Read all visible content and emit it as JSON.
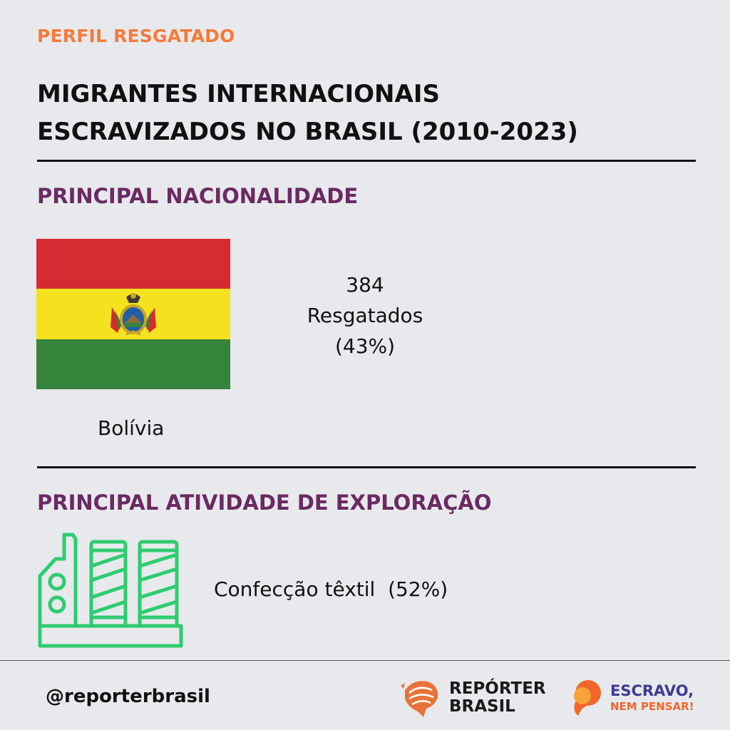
{
  "header": {
    "kicker": "PERFIL RESGATADO",
    "title_line1": "MIGRANTES INTERNACIONAIS",
    "title_line2": "ESCRAVIZADOS NO BRASIL (2010-2023)"
  },
  "nationality": {
    "heading": "PRINCIPAL NACIONALIDADE",
    "flag_icon": "bolivia-flag",
    "flag_colors": [
      "#d52b32",
      "#f4e21e",
      "#36843c"
    ],
    "count": "384",
    "count_label": "Resgatados",
    "percent": "(43%)",
    "country": "Bolívia"
  },
  "activity": {
    "heading": "PRINCIPAL ATIVIDADE DE EXPLORAÇÃO",
    "icon": "textile-machine-icon",
    "icon_color": "#2ecc71",
    "label": "Confecção têxtil  (52%)"
  },
  "footer": {
    "handle": "@reporterbrasil",
    "brand1_line1": "REPÓRTER",
    "brand1_line2": "BRASIL",
    "brand2_line1": "ESCRAVO,",
    "brand2_line2": "NEM PENSAR!",
    "accent_orange": "#f0662c",
    "accent_purple": "#3f3a93"
  }
}
